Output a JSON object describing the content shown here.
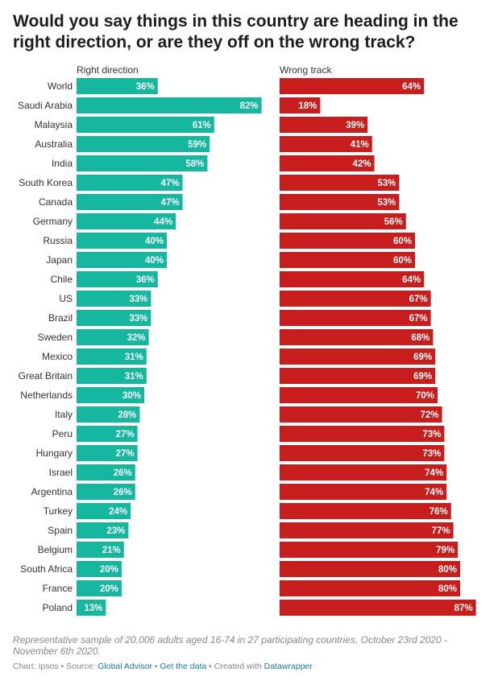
{
  "title": "Would you say things in this country are heading in the right direction, or are they off on the wrong track?",
  "footnote": "Representative sample of 20,006 adults aged 16-74 in 27 participating countries, October 23rd 2020 - November 6th 2020.",
  "footer": {
    "chart_prefix": "Chart: Ipsos",
    "source_prefix": " • Source: ",
    "source_link": "Global Advisor",
    "sep": " • ",
    "get_data": "Get the data",
    "created_prefix": " • Created with ",
    "created_link": "Datawrapper"
  },
  "colors": {
    "right": "#15b79e",
    "wrong": "#c71e1d"
  },
  "chart_data": {
    "type": "bar",
    "orientation": "horizontal",
    "value_suffix": "%",
    "xlim": [
      0,
      100
    ],
    "categories": [
      "World",
      "Saudi Arabia",
      "Malaysia",
      "Australia",
      "India",
      "South Korea",
      "Canada",
      "Germany",
      "Russia",
      "Japan",
      "Chile",
      "US",
      "Brazil",
      "Sweden",
      "Mexico",
      "Great Britain",
      "Netherlands",
      "Italy",
      "Peru",
      "Hungary",
      "Israel",
      "Argentina",
      "Turkey",
      "Spain",
      "Belgium",
      "South Africa",
      "France",
      "Poland"
    ],
    "series": [
      {
        "name": "Right direction",
        "values": [
          36,
          82,
          61,
          59,
          58,
          47,
          47,
          44,
          40,
          40,
          36,
          33,
          33,
          32,
          31,
          31,
          30,
          28,
          27,
          27,
          26,
          26,
          24,
          23,
          21,
          20,
          20,
          13
        ]
      },
      {
        "name": "Wrong track",
        "values": [
          64,
          18,
          39,
          41,
          42,
          53,
          53,
          56,
          60,
          60,
          64,
          67,
          67,
          68,
          69,
          69,
          70,
          72,
          73,
          73,
          74,
          74,
          76,
          77,
          79,
          80,
          80,
          87
        ]
      }
    ]
  }
}
